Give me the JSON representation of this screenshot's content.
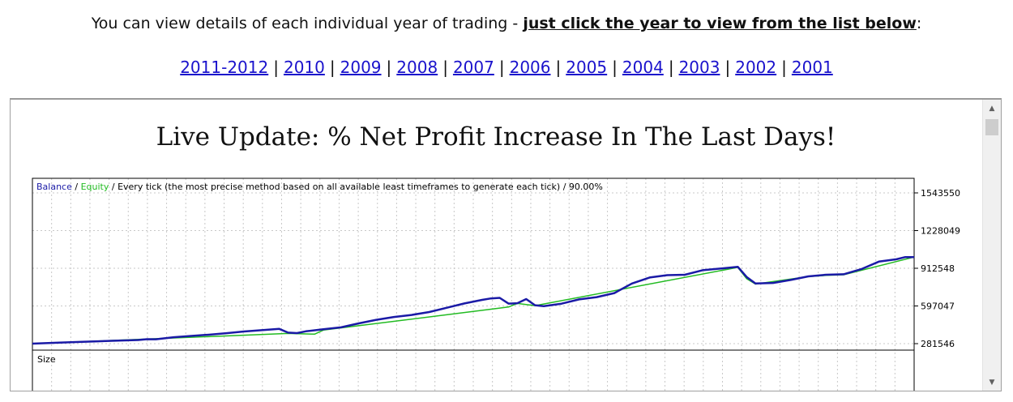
{
  "intro": {
    "text": "You can view details of each individual year of trading - ",
    "emphasis": "just click the year to view from the list below",
    "suffix": ":"
  },
  "years": [
    "2011-2012",
    "2010",
    "2009",
    "2008",
    "2007",
    "2006",
    "2005",
    "2004",
    "2003",
    "2002",
    "2001"
  ],
  "frame": {
    "title": "Live Update: % Net Profit Increase In The Last Days!"
  },
  "chart_data": {
    "type": "line",
    "legend": {
      "balance": "Balance",
      "sep1": " / ",
      "equity": "Equity",
      "rest": " / Every tick (the most precise method based on all available least timeframes to generate each tick) / 90.00%"
    },
    "colors": {
      "balance": "#1a1aa6",
      "equity": "#22bb22",
      "grid": "#c8c8c8",
      "axis": "#000000"
    },
    "y_ticks": [
      1543550,
      1228049,
      912548,
      597047,
      281546
    ],
    "ylim": [
      281546,
      1543550
    ],
    "xlim": [
      0,
      100
    ],
    "size_panel_label": "Size",
    "series": [
      {
        "name": "Balance",
        "points": [
          [
            0,
            281546
          ],
          [
            3,
            290000
          ],
          [
            6,
            298000
          ],
          [
            9,
            305000
          ],
          [
            12,
            312000
          ],
          [
            13,
            319000
          ],
          [
            14,
            318000
          ],
          [
            16,
            335000
          ],
          [
            18,
            346000
          ],
          [
            20,
            356000
          ],
          [
            22,
            369000
          ],
          [
            24,
            383000
          ],
          [
            26,
            394000
          ],
          [
            28,
            405000
          ],
          [
            29,
            374000
          ],
          [
            30,
            370000
          ],
          [
            31,
            385000
          ],
          [
            33,
            402000
          ],
          [
            35,
            418000
          ],
          [
            37,
            451000
          ],
          [
            39,
            481000
          ],
          [
            41,
            505000
          ],
          [
            43,
            522000
          ],
          [
            45,
            546000
          ],
          [
            47,
            582000
          ],
          [
            49,
            618000
          ],
          [
            51,
            648000
          ],
          [
            52,
            660000
          ],
          [
            53,
            665000
          ],
          [
            54,
            617000
          ],
          [
            55,
            620000
          ],
          [
            56,
            655000
          ],
          [
            57,
            603000
          ],
          [
            58,
            595000
          ],
          [
            60,
            616000
          ],
          [
            62,
            652000
          ],
          [
            64,
            671000
          ],
          [
            66,
            705000
          ],
          [
            68,
            785000
          ],
          [
            70,
            835000
          ],
          [
            72,
            855000
          ],
          [
            74,
            858000
          ],
          [
            76,
            896000
          ],
          [
            78,
            910000
          ],
          [
            80,
            925000
          ],
          [
            81,
            840000
          ],
          [
            82,
            785000
          ],
          [
            84,
            790000
          ],
          [
            86,
            815000
          ],
          [
            88,
            845000
          ],
          [
            90,
            858000
          ],
          [
            92,
            862000
          ],
          [
            94,
            905000
          ],
          [
            96,
            968000
          ],
          [
            98,
            988000
          ],
          [
            99,
            1006000
          ],
          [
            100,
            1006000
          ]
        ]
      },
      {
        "name": "Equity",
        "points": [
          [
            0,
            281546
          ],
          [
            29,
            367000
          ],
          [
            32,
            361000
          ],
          [
            33,
            395000
          ],
          [
            54,
            588000
          ],
          [
            55,
            618000
          ],
          [
            57,
            600000
          ],
          [
            80,
            920000
          ],
          [
            81,
            826000
          ],
          [
            82,
            780000
          ],
          [
            88,
            843000
          ],
          [
            90,
            853000
          ],
          [
            92,
            858000
          ],
          [
            100,
            1006000
          ]
        ]
      }
    ]
  }
}
